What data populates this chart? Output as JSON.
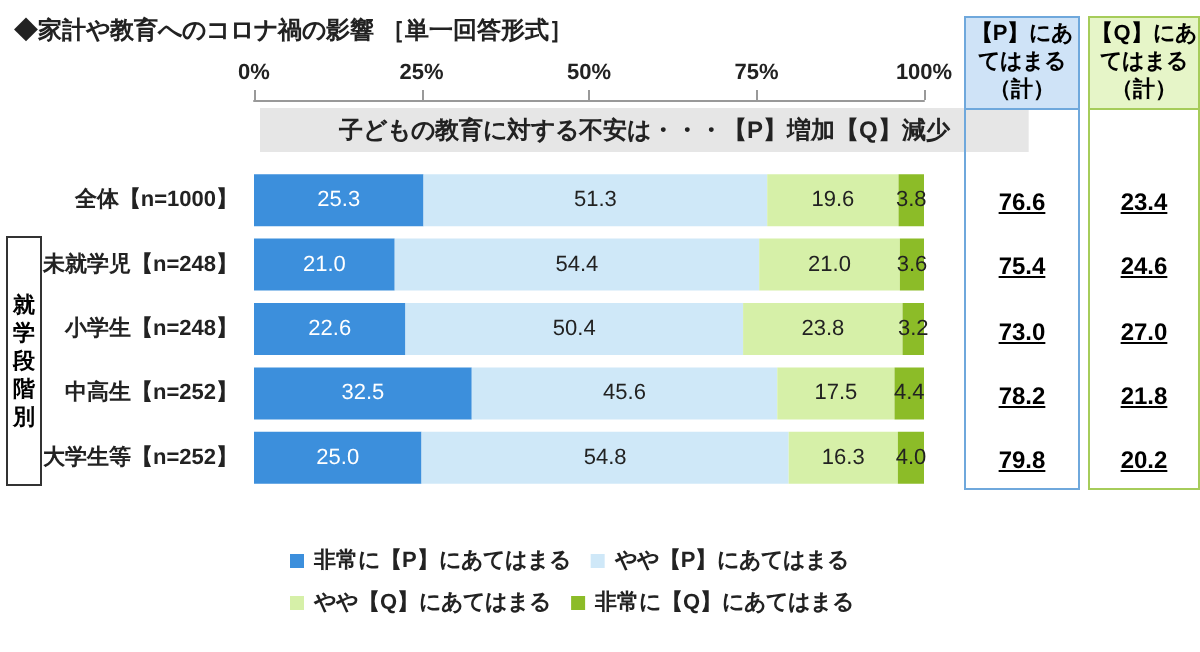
{
  "chart_data": {
    "type": "bar",
    "orientation": "horizontal",
    "stacked": true,
    "title": "◆家計や教育へのコロナ禍の影響 ［単一回答形式］",
    "subtitle": "子どもの教育に対する不安は・・・【P】増加【Q】減少",
    "categories": [
      "全体【n=1000】",
      "未就学児【n=248】",
      "小学生【n=248】",
      "中高生【n=252】",
      "大学生等【n=252】"
    ],
    "series": [
      {
        "name": "非常に【P】にあてはまる",
        "color": "#3c8fdc",
        "values": [
          25.3,
          21.0,
          22.6,
          32.5,
          25.0
        ],
        "value_labels": [
          "25.3",
          "21.0",
          "22.6",
          "32.5",
          "25.0"
        ]
      },
      {
        "name": "やや【P】にあてはまる",
        "color": "#cfe8f8",
        "values": [
          51.3,
          54.4,
          50.4,
          45.6,
          54.8
        ],
        "value_labels": [
          "51.3",
          "54.4",
          "50.4",
          "45.6",
          "54.8"
        ]
      },
      {
        "name": "やや【Q】にあてはまる",
        "color": "#d6f0a8",
        "values": [
          19.6,
          21.0,
          23.8,
          17.5,
          16.3
        ],
        "value_labels": [
          "19.6",
          "21.0",
          "23.8",
          "17.5",
          "16.3"
        ]
      },
      {
        "name": "非常に【Q】にあてはまる",
        "color": "#8cbc28",
        "values": [
          3.8,
          3.6,
          3.2,
          4.4,
          4.0
        ],
        "value_labels": [
          "3.8",
          "3.6",
          "3.2",
          "4.4",
          "4.0"
        ]
      }
    ],
    "xlim": [
      0,
      100
    ],
    "xticks": [
      {
        "value": 0,
        "label": "0%"
      },
      {
        "value": 25,
        "label": "25%"
      },
      {
        "value": 50,
        "label": "50%"
      },
      {
        "value": 75,
        "label": "75%"
      },
      {
        "value": 100,
        "label": "100%"
      }
    ],
    "grid": false,
    "legend": "bottom",
    "annotations": [
      "【P】にあてはまる（計）",
      "76.6",
      "75.4",
      "73.0",
      "78.2",
      "79.8",
      "【Q】にあてはまる（計）",
      "23.4",
      "24.6",
      "27.0",
      "21.8",
      "20.2",
      "就学段階別"
    ]
  }
}
